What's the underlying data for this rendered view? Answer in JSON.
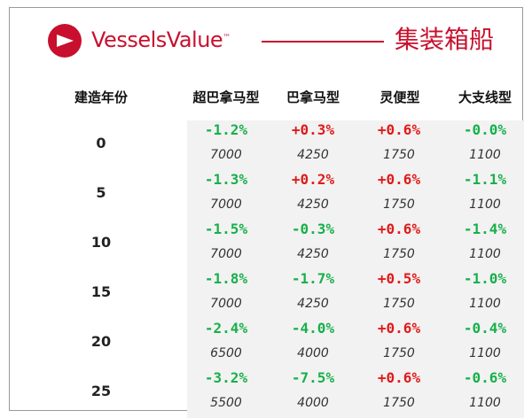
{
  "brand": {
    "name": "VesselsValue",
    "trademark": "™",
    "category": "集装箱船"
  },
  "colors": {
    "brand_red": "#c8102e",
    "positive": "#e01a1a",
    "negative": "#17b04a"
  },
  "table": {
    "age_header": "建造年份",
    "columns": [
      {
        "label": "超巴拿马型"
      },
      {
        "label": "巴拿马型"
      },
      {
        "label": "灵便型"
      },
      {
        "label": "大支线型"
      }
    ],
    "rows": [
      {
        "age": "0",
        "cells": [
          {
            "pct": "-1.2%",
            "teu": "7000"
          },
          {
            "pct": "+0.3%",
            "teu": "4250"
          },
          {
            "pct": "+0.6%",
            "teu": "1750"
          },
          {
            "pct": "-0.0%",
            "teu": "1100"
          }
        ]
      },
      {
        "age": "5",
        "cells": [
          {
            "pct": "-1.3%",
            "teu": "7000"
          },
          {
            "pct": "+0.2%",
            "teu": "4250"
          },
          {
            "pct": "+0.6%",
            "teu": "1750"
          },
          {
            "pct": "-1.1%",
            "teu": "1100"
          }
        ]
      },
      {
        "age": "10",
        "cells": [
          {
            "pct": "-1.5%",
            "teu": "7000"
          },
          {
            "pct": "-0.3%",
            "teu": "4250"
          },
          {
            "pct": "+0.6%",
            "teu": "1750"
          },
          {
            "pct": "-1.4%",
            "teu": "1100"
          }
        ]
      },
      {
        "age": "15",
        "cells": [
          {
            "pct": "-1.8%",
            "teu": "7000"
          },
          {
            "pct": "-1.7%",
            "teu": "4250"
          },
          {
            "pct": "+0.5%",
            "teu": "1750"
          },
          {
            "pct": "-1.0%",
            "teu": "1100"
          }
        ]
      },
      {
        "age": "20",
        "cells": [
          {
            "pct": "-2.4%",
            "teu": "6500"
          },
          {
            "pct": "-4.0%",
            "teu": "4000"
          },
          {
            "pct": "+0.6%",
            "teu": "1750"
          },
          {
            "pct": "-0.4%",
            "teu": "1100"
          }
        ]
      },
      {
        "age": "25",
        "cells": [
          {
            "pct": "-3.2%",
            "teu": "5500"
          },
          {
            "pct": "-7.5%",
            "teu": "4000"
          },
          {
            "pct": "+0.6%",
            "teu": "1750"
          },
          {
            "pct": "-0.6%",
            "teu": "1100"
          }
        ]
      }
    ]
  }
}
